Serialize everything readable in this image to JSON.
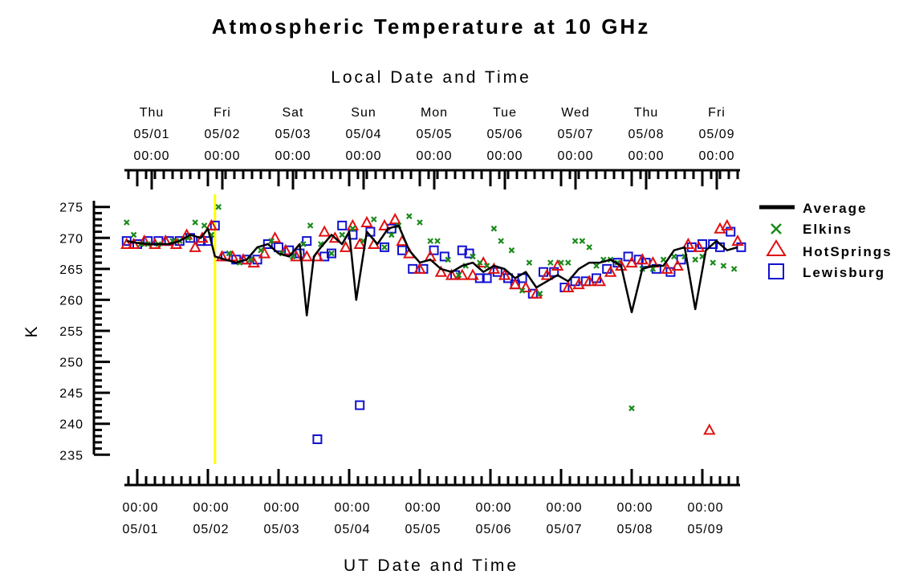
{
  "colors": {
    "average": "#000000",
    "elkins": "#1a8a1a",
    "hotsprings": "#e01010",
    "lewisburg": "#1010d0",
    "marker_line": "#ffff00"
  },
  "chart_data": {
    "type": "scatter",
    "title": "Atmospheric Temperature at 10 GHz",
    "top_axis_title": "Local Date and Time",
    "xlabel": "UT Date and Time",
    "ylabel": "K",
    "ylim": [
      234,
      276
    ],
    "yticks": [
      235,
      240,
      245,
      250,
      255,
      260,
      265,
      270,
      275
    ],
    "xlim_days": [
      -0.2,
      8.55
    ],
    "top_ticks": [
      {
        "day": "Thu",
        "date": "05/01",
        "time": "00:00"
      },
      {
        "day": "Fri",
        "date": "05/02",
        "time": "00:00"
      },
      {
        "day": "Sat",
        "date": "05/03",
        "time": "00:00"
      },
      {
        "day": "Sun",
        "date": "05/04",
        "time": "00:00"
      },
      {
        "day": "Mon",
        "date": "05/05",
        "time": "00:00"
      },
      {
        "day": "Tue",
        "date": "05/06",
        "time": "00:00"
      },
      {
        "day": "Wed",
        "date": "05/07",
        "time": "00:00"
      },
      {
        "day": "Thu",
        "date": "05/08",
        "time": "00:00"
      },
      {
        "day": "Fri",
        "date": "05/09",
        "time": "00:00"
      }
    ],
    "bottom_ticks": [
      {
        "time": "00:00",
        "date": "05/01"
      },
      {
        "time": "00:00",
        "date": "05/02"
      },
      {
        "time": "00:00",
        "date": "05/03"
      },
      {
        "time": "00:00",
        "date": "05/04"
      },
      {
        "time": "00:00",
        "date": "05/05"
      },
      {
        "time": "00:00",
        "date": "05/06"
      },
      {
        "time": "00:00",
        "date": "05/07"
      },
      {
        "time": "00:00",
        "date": "05/08"
      },
      {
        "time": "00:00",
        "date": "05/09"
      }
    ],
    "marker_line_day": 1.1,
    "legend_position": "right",
    "series": [
      {
        "name": "Average",
        "style": "line",
        "x": [
          -0.15,
          0.0,
          0.15,
          0.3,
          0.45,
          0.6,
          0.75,
          0.9,
          1.0,
          1.1,
          1.25,
          1.4,
          1.55,
          1.7,
          1.85,
          2.0,
          2.15,
          2.3,
          2.4,
          2.5,
          2.6,
          2.75,
          2.9,
          3.0,
          3.1,
          3.25,
          3.4,
          3.55,
          3.7,
          3.85,
          4.0,
          4.15,
          4.3,
          4.45,
          4.6,
          4.75,
          4.9,
          5.05,
          5.2,
          5.35,
          5.5,
          5.65,
          5.8,
          5.95,
          6.1,
          6.25,
          6.4,
          6.55,
          6.7,
          6.85,
          7.0,
          7.15,
          7.3,
          7.45,
          7.6,
          7.75,
          7.9,
          8.05,
          8.2,
          8.35,
          8.5
        ],
        "y": [
          269.5,
          269.2,
          269.0,
          269.0,
          269.0,
          269.5,
          270.5,
          270.0,
          271.5,
          267.0,
          266.5,
          266.0,
          266.5,
          268.5,
          269.0,
          267.5,
          267.0,
          269.0,
          257.5,
          267.0,
          268.5,
          270.5,
          269.0,
          271.0,
          260.0,
          271.0,
          269.0,
          271.5,
          272.0,
          268.0,
          266.0,
          266.5,
          265.0,
          264.5,
          265.5,
          266.0,
          264.5,
          265.5,
          265.0,
          263.5,
          264.5,
          262.0,
          263.0,
          264.0,
          263.0,
          265.0,
          266.0,
          266.0,
          266.5,
          265.5,
          258.0,
          265.0,
          265.5,
          265.5,
          268.0,
          268.5,
          258.5,
          268.0,
          269.5,
          268.0,
          268.5
        ]
      },
      {
        "name": "Elkins",
        "style": "x",
        "x": [
          -0.15,
          -0.05,
          0.05,
          0.15,
          0.3,
          0.5,
          0.6,
          0.72,
          0.82,
          0.95,
          1.05,
          1.15,
          1.3,
          1.45,
          1.6,
          1.75,
          1.9,
          2.05,
          2.2,
          2.35,
          2.45,
          2.6,
          2.75,
          2.9,
          3.05,
          3.2,
          3.35,
          3.5,
          3.6,
          3.7,
          3.85,
          4.0,
          4.15,
          4.25,
          4.4,
          4.55,
          4.65,
          4.75,
          4.85,
          4.95,
          5.05,
          5.15,
          5.3,
          5.45,
          5.55,
          5.7,
          5.85,
          6.0,
          6.1,
          6.2,
          6.3,
          6.4,
          6.5,
          6.6,
          6.7,
          6.8,
          7.0,
          7.15,
          7.3,
          7.45,
          7.6,
          7.75,
          7.9,
          8.0,
          8.15,
          8.3,
          8.45
        ],
        "y": [
          272.5,
          270.5,
          269.0,
          269.0,
          269.0,
          269.5,
          269.5,
          270.0,
          272.5,
          272.0,
          270.5,
          275.0,
          267.5,
          266.0,
          266.5,
          268.0,
          269.5,
          267.5,
          267.0,
          269.0,
          272.0,
          269.0,
          267.5,
          270.5,
          271.5,
          269.5,
          273.0,
          268.5,
          270.5,
          272.0,
          273.5,
          272.5,
          269.5,
          269.5,
          266.5,
          264.0,
          265.5,
          267.0,
          266.0,
          265.5,
          271.5,
          269.5,
          268.0,
          261.5,
          266.0,
          261.0,
          266.0,
          266.0,
          266.0,
          269.5,
          269.5,
          268.5,
          265.5,
          266.5,
          266.5,
          266.0,
          242.5,
          265.0,
          265.0,
          266.5,
          267.0,
          267.0,
          266.5,
          267.0,
          266.0,
          265.5,
          265.0
        ]
      },
      {
        "name": "HotSprings",
        "style": "triangle",
        "x": [
          -0.15,
          -0.05,
          0.1,
          0.25,
          0.4,
          0.55,
          0.7,
          0.82,
          0.92,
          1.05,
          1.2,
          1.35,
          1.5,
          1.65,
          1.8,
          1.95,
          2.1,
          2.25,
          2.4,
          2.55,
          2.65,
          2.8,
          2.95,
          3.05,
          3.15,
          3.25,
          3.35,
          3.5,
          3.65,
          3.75,
          3.85,
          4.0,
          4.15,
          4.3,
          4.45,
          4.6,
          4.75,
          4.9,
          5.05,
          5.2,
          5.35,
          5.5,
          5.65,
          5.8,
          5.95,
          6.1,
          6.25,
          6.4,
          6.55,
          6.7,
          6.85,
          7.0,
          7.15,
          7.3,
          7.5,
          7.65,
          7.8,
          7.95,
          8.1,
          8.25,
          8.35,
          8.5
        ],
        "y": [
          269.0,
          269.0,
          269.5,
          269.0,
          269.5,
          269.0,
          270.5,
          268.5,
          270.0,
          272.0,
          267.0,
          267.0,
          266.5,
          266.0,
          267.5,
          270.0,
          268.0,
          267.0,
          267.0,
          267.0,
          271.0,
          270.0,
          268.5,
          272.0,
          269.0,
          272.5,
          269.0,
          272.0,
          273.0,
          269.5,
          267.5,
          265.0,
          267.0,
          264.5,
          264.0,
          264.0,
          264.0,
          266.0,
          265.0,
          264.0,
          262.5,
          262.0,
          261.0,
          264.0,
          265.5,
          262.0,
          262.5,
          263.0,
          263.0,
          264.5,
          265.5,
          266.0,
          266.5,
          266.0,
          265.0,
          265.5,
          269.0,
          268.5,
          239.0,
          271.5,
          272.0,
          269.5
        ]
      },
      {
        "name": "Lewisburg",
        "style": "square",
        "x": [
          -0.15,
          0.0,
          0.15,
          0.3,
          0.45,
          0.6,
          0.75,
          0.9,
          1.0,
          1.1,
          1.25,
          1.4,
          1.55,
          1.7,
          1.85,
          2.0,
          2.15,
          2.3,
          2.4,
          2.55,
          2.65,
          2.75,
          2.9,
          3.05,
          3.15,
          3.3,
          3.5,
          3.6,
          3.75,
          3.9,
          4.05,
          4.2,
          4.35,
          4.5,
          4.6,
          4.7,
          4.85,
          4.95,
          5.1,
          5.25,
          5.35,
          5.45,
          5.6,
          5.75,
          5.9,
          6.05,
          6.2,
          6.35,
          6.5,
          6.65,
          6.8,
          6.95,
          7.1,
          7.2,
          7.35,
          7.55,
          7.7,
          7.85,
          8.0,
          8.15,
          8.25,
          8.4,
          8.55
        ],
        "y": [
          269.5,
          269.0,
          269.5,
          269.5,
          269.5,
          269.5,
          270.0,
          269.5,
          269.5,
          272.0,
          267.0,
          266.5,
          266.5,
          266.5,
          269.0,
          268.5,
          268.0,
          267.5,
          269.5,
          237.5,
          267.0,
          267.5,
          272.0,
          270.5,
          243.0,
          271.0,
          268.5,
          271.5,
          268.0,
          265.0,
          265.0,
          268.0,
          267.0,
          264.0,
          268.0,
          267.5,
          263.5,
          263.5,
          264.5,
          263.5,
          262.5,
          263.5,
          261.0,
          264.5,
          264.5,
          262.0,
          263.0,
          263.0,
          263.5,
          265.0,
          266.0,
          267.0,
          266.5,
          266.0,
          265.0,
          264.5,
          266.5,
          268.5,
          269.0,
          269.0,
          268.5,
          271.0,
          268.5
        ]
      }
    ]
  }
}
